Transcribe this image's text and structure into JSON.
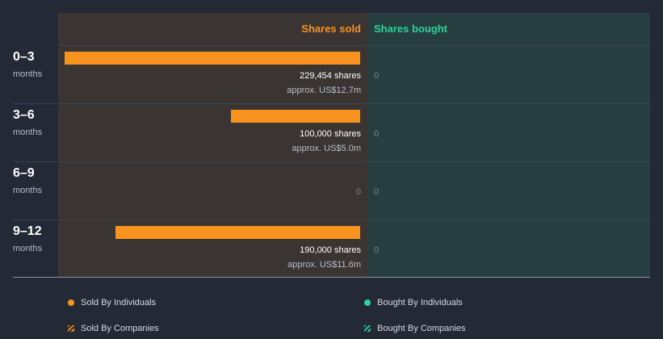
{
  "chart_data": {
    "type": "bar",
    "orientation": "horizontal",
    "title": "",
    "series_headers": {
      "sold": "Shares sold",
      "bought": "Shares bought"
    },
    "categories": [
      {
        "label": "0–3",
        "unit": "months"
      },
      {
        "label": "3–6",
        "unit": "months"
      },
      {
        "label": "6–9",
        "unit": "months"
      },
      {
        "label": "9–12",
        "unit": "months"
      }
    ],
    "series": [
      {
        "name": "Sold By Individuals",
        "values": [
          229454,
          100000,
          0,
          190000
        ],
        "shares_text": [
          "229,454 shares",
          "100,000 shares",
          "0",
          "190,000 shares"
        ],
        "approx_text": [
          "approx. US$12.7m",
          "approx. US$5.0m",
          "",
          "approx. US$11.6m"
        ]
      },
      {
        "name": "Bought By Individuals",
        "values": [
          0,
          0,
          0,
          0
        ],
        "shares_text": [
          "0",
          "0",
          "0",
          "0"
        ]
      }
    ],
    "xlim": [
      0,
      229454
    ],
    "legend": [
      {
        "label": "Sold By Individuals",
        "color": "#f7931e",
        "style": "dot"
      },
      {
        "label": "Bought By Individuals",
        "color": "#2bd49a",
        "style": "dot"
      },
      {
        "label": "Sold By Companies",
        "color": "#f7931e",
        "style": "hatch"
      },
      {
        "label": "Bought By Companies",
        "color": "#2bd49a",
        "style": "hatch"
      }
    ],
    "legend_position": "bottom"
  },
  "colors": {
    "sold": "#f7931e",
    "bought": "#2bd49a"
  }
}
